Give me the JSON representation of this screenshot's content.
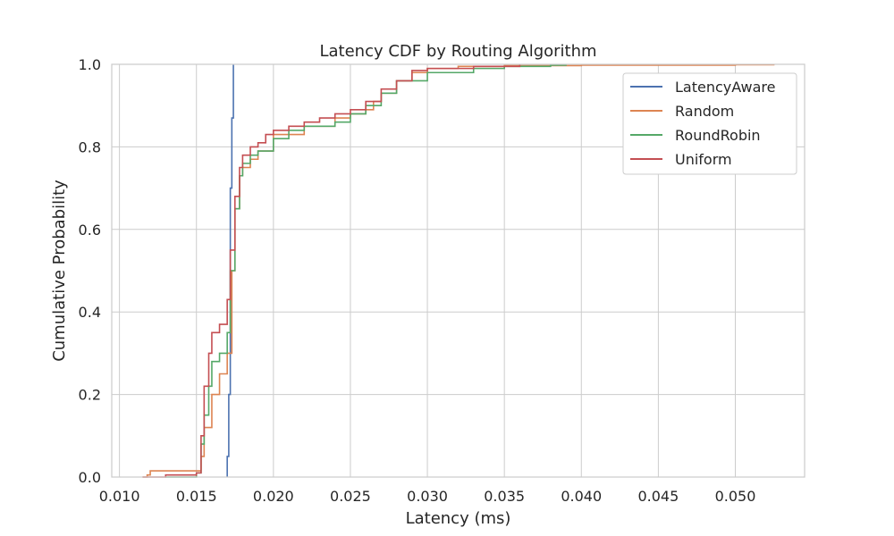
{
  "chart_data": {
    "type": "line",
    "title": "Latency CDF by Routing Algorithm",
    "xlabel": "Latency (ms)",
    "ylabel": "Cumulative Probability",
    "xlim": [
      0.0095,
      0.0545
    ],
    "ylim": [
      0.0,
      1.0
    ],
    "xticks": [
      "0.010",
      "0.015",
      "0.020",
      "0.025",
      "0.030",
      "0.035",
      "0.040",
      "0.045",
      "0.050"
    ],
    "xtick_values": [
      0.01,
      0.015,
      0.02,
      0.025,
      0.03,
      0.035,
      0.04,
      0.045,
      0.05
    ],
    "yticks": [
      "0.0",
      "0.2",
      "0.4",
      "0.6",
      "0.8",
      "1.0"
    ],
    "ytick_values": [
      0.0,
      0.2,
      0.4,
      0.6,
      0.8,
      1.0
    ],
    "grid": true,
    "legend_position": "top-right",
    "series": [
      {
        "name": "LatencyAware",
        "color": "#4c72b0",
        "x": [
          0.017,
          0.017,
          0.0171,
          0.0172,
          0.0172,
          0.0173,
          0.0173,
          0.0174,
          0.0174
        ],
        "y": [
          0.0,
          0.05,
          0.2,
          0.45,
          0.7,
          0.8,
          0.87,
          0.93,
          1.0
        ]
      },
      {
        "name": "Random",
        "color": "#dd8452",
        "x": [
          0.0115,
          0.0118,
          0.012,
          0.015,
          0.0153,
          0.0155,
          0.016,
          0.0165,
          0.017,
          0.0173,
          0.0175,
          0.0178,
          0.018,
          0.0185,
          0.019,
          0.02,
          0.022,
          0.024,
          0.025,
          0.026,
          0.0265,
          0.027,
          0.028,
          0.029,
          0.03,
          0.032,
          0.035,
          0.04,
          0.045,
          0.05,
          0.0525
        ],
        "y": [
          0.0,
          0.005,
          0.015,
          0.015,
          0.05,
          0.12,
          0.2,
          0.25,
          0.3,
          0.5,
          0.65,
          0.73,
          0.75,
          0.77,
          0.79,
          0.83,
          0.85,
          0.87,
          0.88,
          0.89,
          0.91,
          0.93,
          0.96,
          0.98,
          0.99,
          0.995,
          0.997,
          0.998,
          0.998,
          0.999,
          1.0
        ]
      },
      {
        "name": "RoundRobin",
        "color": "#55a868",
        "x": [
          0.013,
          0.015,
          0.0153,
          0.0155,
          0.0158,
          0.016,
          0.0165,
          0.017,
          0.0172,
          0.0175,
          0.0178,
          0.018,
          0.0185,
          0.019,
          0.02,
          0.021,
          0.022,
          0.024,
          0.025,
          0.026,
          0.027,
          0.028,
          0.03,
          0.033,
          0.035,
          0.038,
          0.039
        ],
        "y": [
          0.0,
          0.01,
          0.08,
          0.15,
          0.22,
          0.28,
          0.3,
          0.35,
          0.5,
          0.65,
          0.73,
          0.76,
          0.78,
          0.79,
          0.82,
          0.84,
          0.85,
          0.86,
          0.88,
          0.9,
          0.93,
          0.96,
          0.98,
          0.99,
          0.995,
          0.998,
          1.0
        ]
      },
      {
        "name": "Uniform",
        "color": "#c44e52",
        "x": [
          0.0115,
          0.013,
          0.015,
          0.0153,
          0.0155,
          0.0158,
          0.016,
          0.0165,
          0.017,
          0.0172,
          0.0175,
          0.0178,
          0.018,
          0.0185,
          0.019,
          0.0195,
          0.02,
          0.021,
          0.022,
          0.023,
          0.024,
          0.025,
          0.026,
          0.027,
          0.028,
          0.029,
          0.03,
          0.033,
          0.036
        ],
        "y": [
          0.0,
          0.005,
          0.01,
          0.1,
          0.22,
          0.3,
          0.35,
          0.37,
          0.43,
          0.55,
          0.68,
          0.75,
          0.78,
          0.8,
          0.81,
          0.83,
          0.84,
          0.85,
          0.86,
          0.87,
          0.88,
          0.89,
          0.91,
          0.94,
          0.96,
          0.985,
          0.99,
          0.995,
          1.0
        ]
      }
    ]
  }
}
